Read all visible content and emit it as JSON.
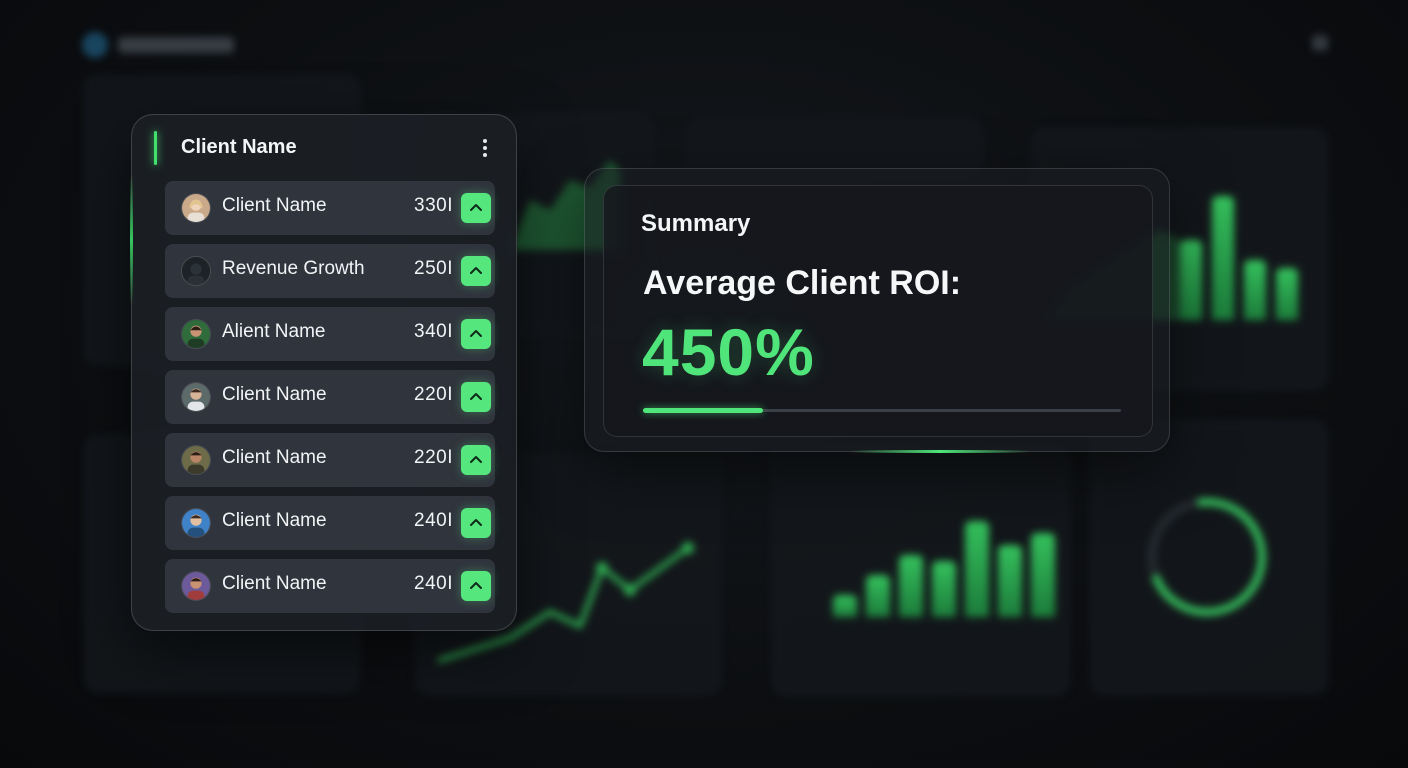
{
  "client_list": {
    "title": "Client Name",
    "rows": [
      {
        "label": "Client Name",
        "value": "330I",
        "avatar": "avatar-woman-blonde"
      },
      {
        "label": "Revenue Growth",
        "value": "250I",
        "avatar": "avatar-dark-silhouette"
      },
      {
        "label": "Alient Name",
        "value": "340I",
        "avatar": "avatar-man-green"
      },
      {
        "label": "Client Name",
        "value": "220I",
        "avatar": "avatar-man-gray"
      },
      {
        "label": "Client Name",
        "value": "220I",
        "avatar": "avatar-man-olive"
      },
      {
        "label": "Client Name",
        "value": "240I",
        "avatar": "avatar-man-blue"
      },
      {
        "label": "Client Name",
        "value": "240I",
        "avatar": "avatar-man-purple"
      }
    ]
  },
  "summary": {
    "title": "Summary",
    "metric_label": "Average Client ROI:",
    "metric_value": "450%",
    "progress_fraction": 0.25
  },
  "colors": {
    "accent": "#4fe57a",
    "card_bg": "#1c2025",
    "row_bg": "#3a3f46",
    "page_bg": "#0b0d10"
  }
}
